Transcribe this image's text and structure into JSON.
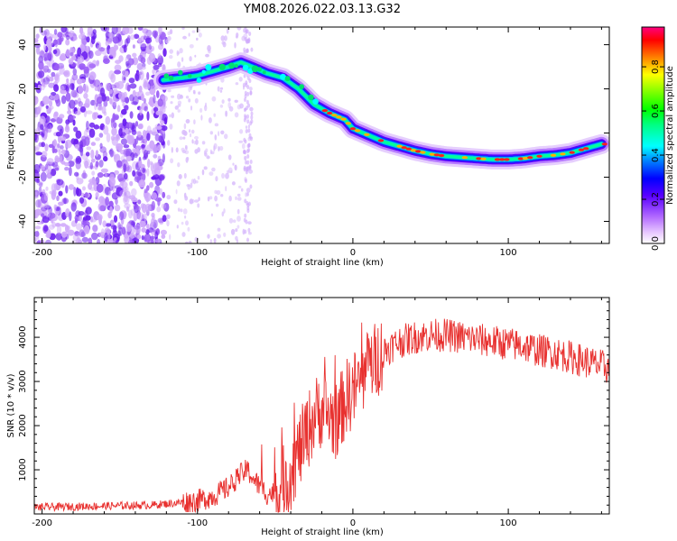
{
  "title": "YM08.2026.022.03.13.G32",
  "chart_data": [
    {
      "type": "heatmap",
      "xlabel": "Height of straight line (km)",
      "ylabel": "Frequency (Hz)",
      "xlim": [
        -205,
        165
      ],
      "ylim": [
        -50,
        48
      ],
      "x_ticks": [
        -200,
        -100,
        0,
        100
      ],
      "y_ticks": [
        -40,
        -20,
        0,
        20,
        40
      ],
      "colorbar": {
        "label": "Normalized spectral amplitude",
        "range": [
          0,
          0.98
        ],
        "ticks": [
          "0.0",
          "0.2",
          "0.4",
          "0.6",
          "0.8"
        ],
        "tick_values": [
          0.0,
          0.2,
          0.4,
          0.6,
          0.8
        ]
      },
      "ridge": {
        "description": "dominant Doppler frequency track",
        "x": [
          -122,
          -110,
          -100,
          -90,
          -80,
          -72,
          -65,
          -55,
          -45,
          -35,
          -25,
          -15,
          -5,
          0,
          10,
          20,
          30,
          40,
          50,
          60,
          70,
          80,
          90,
          100,
          110,
          120,
          130,
          140,
          150,
          160
        ],
        "y": [
          24,
          25,
          26,
          28,
          30,
          32,
          30,
          27,
          25,
          20,
          13,
          9,
          6,
          2,
          -1,
          -4,
          -6,
          -8,
          -9.5,
          -10.5,
          -11,
          -11.5,
          -12,
          -12,
          -11.5,
          -10.5,
          -10,
          -9,
          -7,
          -5
        ]
      }
    },
    {
      "type": "line",
      "xlabel": "Height of straight line (km)",
      "ylabel": "SNR (10 * v/v)",
      "xlim": [
        -205,
        165
      ],
      "ylim": [
        0,
        4900
      ],
      "x_ticks": [
        -200,
        -100,
        0,
        100
      ],
      "y_ticks": [
        1000,
        2000,
        3000,
        4000
      ],
      "series": [
        {
          "name": "SNR",
          "color": "#e8312f",
          "x": [
            -205,
            -190,
            -175,
            -160,
            -145,
            -130,
            -120,
            -110,
            -100,
            -90,
            -80,
            -72,
            -68,
            -62,
            -55,
            -48,
            -42,
            -36,
            -30,
            -25,
            -20,
            -15,
            -10,
            -5,
            0,
            5,
            10,
            15,
            20,
            25,
            30,
            40,
            50,
            60,
            70,
            80,
            90,
            100,
            110,
            120,
            130,
            140,
            150,
            160,
            165
          ],
          "y": [
            150,
            160,
            170,
            180,
            190,
            200,
            230,
            260,
            300,
            400,
            600,
            900,
            1000,
            700,
            450,
            500,
            800,
            1300,
            1800,
            2200,
            2400,
            2200,
            2100,
            2600,
            2800,
            3000,
            3300,
            3500,
            3700,
            3800,
            3900,
            4000,
            4050,
            4050,
            4000,
            3950,
            3900,
            3850,
            3800,
            3700,
            3650,
            3550,
            3450,
            3350,
            3300
          ]
        }
      ]
    }
  ]
}
